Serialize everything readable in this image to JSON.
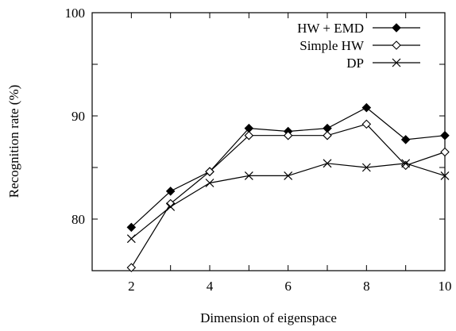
{
  "chart_data": {
    "type": "line",
    "xlabel": "Dimension of eigenspace",
    "ylabel": "Recognition rate (%)",
    "xlim": [
      1,
      10
    ],
    "ylim": [
      75,
      100
    ],
    "xticks": [
      2,
      4,
      6,
      8,
      10
    ],
    "yticks": [
      80,
      90,
      100
    ],
    "grid": false,
    "legend_position": "top-right",
    "x": [
      2,
      3,
      4,
      5,
      6,
      7,
      8,
      9,
      10
    ],
    "series": [
      {
        "name": "HW + EMD",
        "marker": "filled-diamond",
        "color": "#000000",
        "values": [
          79.2,
          82.7,
          84.6,
          88.8,
          88.5,
          88.8,
          90.8,
          87.7,
          88.1
        ]
      },
      {
        "name": "Simple HW",
        "marker": "open-diamond",
        "color": "#000000",
        "values": [
          75.3,
          81.5,
          84.6,
          88.1,
          88.1,
          88.1,
          89.2,
          85.2,
          86.5
        ]
      },
      {
        "name": "DP",
        "marker": "cross",
        "color": "#000000",
        "values": [
          78.1,
          81.2,
          83.5,
          84.2,
          84.2,
          85.4,
          85.0,
          85.4,
          84.2
        ]
      }
    ]
  }
}
